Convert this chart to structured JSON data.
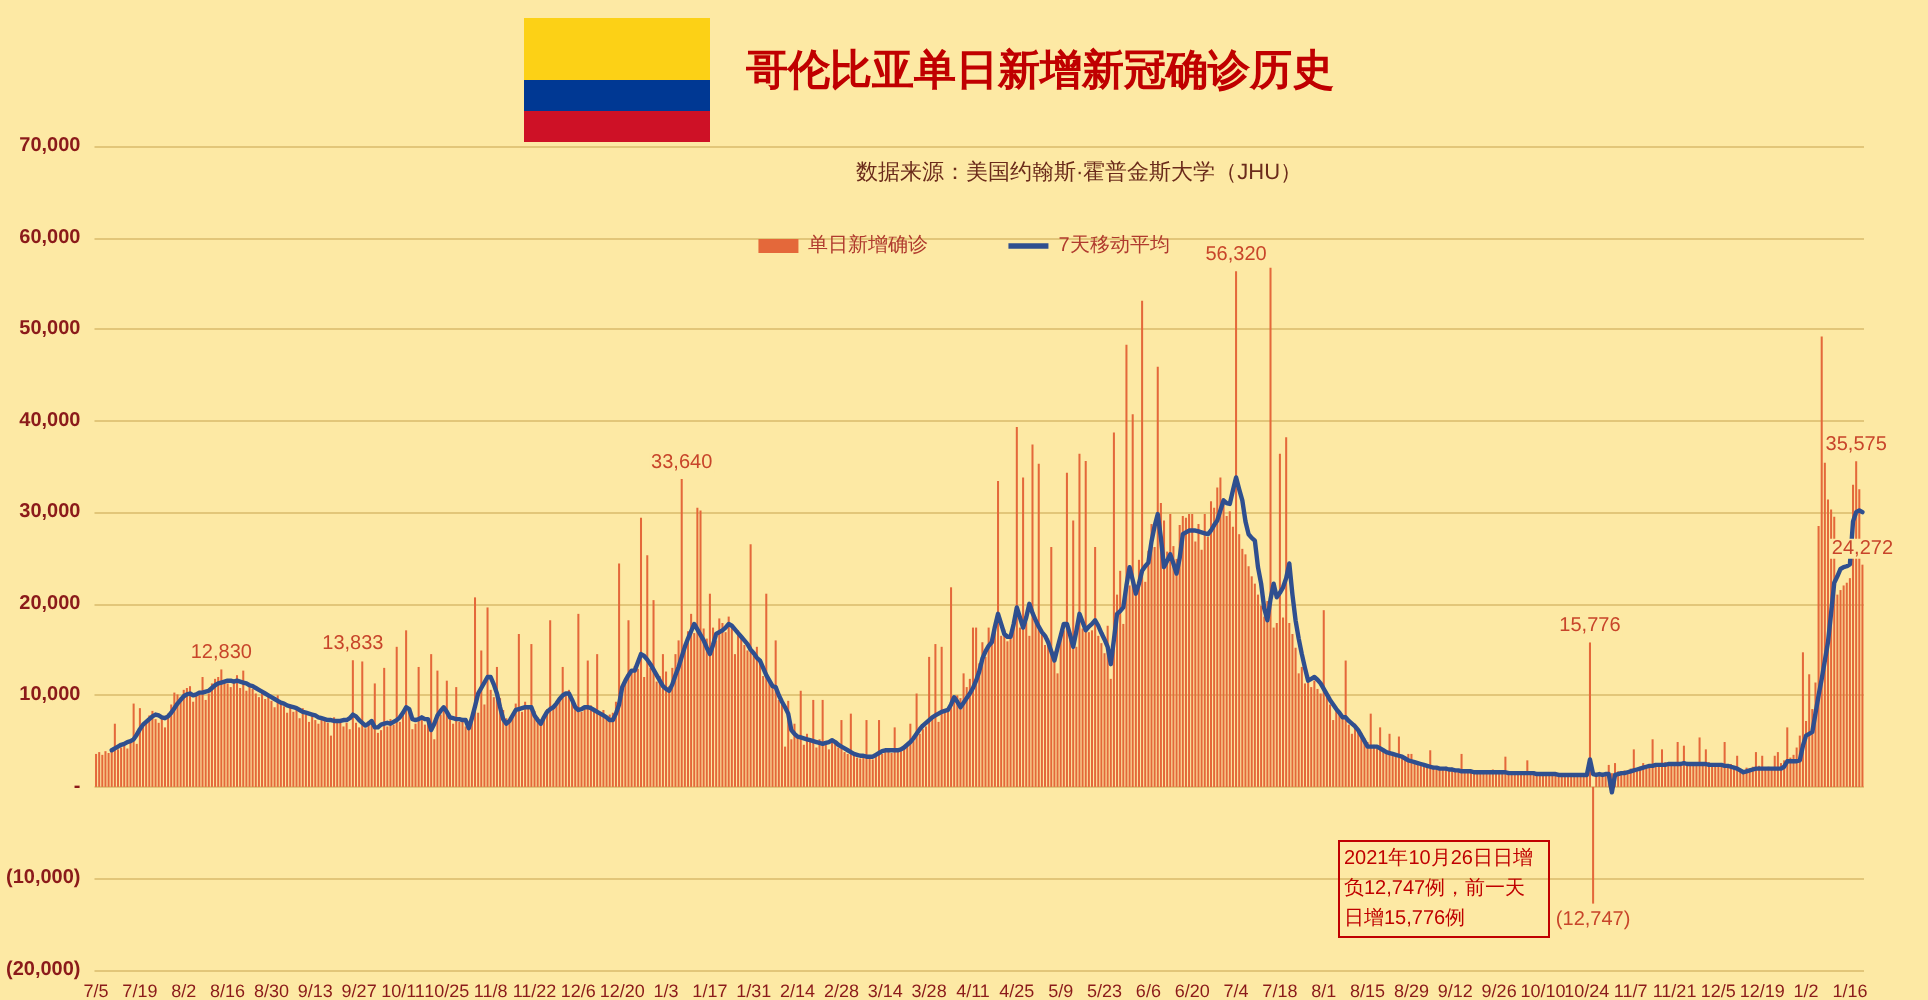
{
  "chart_data": {
    "type": "bar",
    "title": "哥伦比亚单日新增新冠确诊历史",
    "subtitle": "数据来源：美国约翰斯·霍普金斯大学（JHU）",
    "categories": [
      "7/5",
      null,
      null,
      null,
      null,
      null,
      null,
      null,
      null,
      null,
      null,
      null,
      null,
      null,
      "7/19",
      null,
      null,
      null,
      null,
      null,
      null,
      null,
      null,
      null,
      null,
      null,
      null,
      null,
      "8/2",
      null,
      null,
      null,
      null,
      null,
      null,
      null,
      null,
      null,
      null,
      null,
      null,
      null,
      "8/16",
      null,
      null,
      null,
      null,
      null,
      null,
      null,
      null,
      null,
      null,
      null,
      null,
      null,
      "8/30",
      null,
      null,
      null,
      null,
      null,
      null,
      null,
      null,
      null,
      null,
      null,
      null,
      null,
      "9/13",
      null,
      null,
      null,
      null,
      null,
      null,
      null,
      null,
      null,
      null,
      null,
      null,
      null,
      "9/27",
      null,
      null,
      null,
      null,
      null,
      null,
      null,
      null,
      null,
      null,
      null,
      null,
      null,
      "10/11",
      null,
      null,
      null,
      null,
      null,
      null,
      null,
      null,
      null,
      null,
      null,
      null,
      null,
      "10/25",
      null,
      null,
      null,
      null,
      null,
      null,
      null,
      null,
      null,
      null,
      null,
      null,
      null,
      "11/8",
      null,
      null,
      null,
      null,
      null,
      null,
      null,
      null,
      null,
      null,
      null,
      null,
      null,
      "11/22",
      null,
      null,
      null,
      null,
      null,
      null,
      null,
      null,
      null,
      null,
      null,
      null,
      null,
      "12/6",
      null,
      null,
      null,
      null,
      null,
      null,
      null,
      null,
      null,
      null,
      null,
      null,
      null,
      "12/20",
      null,
      null,
      null,
      null,
      null,
      null,
      null,
      null,
      null,
      null,
      null,
      null,
      null,
      "1/3",
      null,
      null,
      null,
      null,
      null,
      null,
      null,
      null,
      null,
      null,
      null,
      null,
      null,
      "1/17",
      null,
      null,
      null,
      null,
      null,
      null,
      null,
      null,
      null,
      null,
      null,
      null,
      null,
      "1/31",
      null,
      null,
      null,
      null,
      null,
      null,
      null,
      null,
      null,
      null,
      null,
      null,
      null,
      "2/14",
      null,
      null,
      null,
      null,
      null,
      null,
      null,
      null,
      null,
      null,
      null,
      null,
      null,
      "2/28",
      null,
      null,
      null,
      null,
      null,
      null,
      null,
      null,
      null,
      null,
      null,
      null,
      null,
      "3/14",
      null,
      null,
      null,
      null,
      null,
      null,
      null,
      null,
      null,
      null,
      null,
      null,
      null,
      "3/28",
      null,
      null,
      null,
      null,
      null,
      null,
      null,
      null,
      null,
      null,
      null,
      null,
      null,
      "4/11",
      null,
      null,
      null,
      null,
      null,
      null,
      null,
      null,
      null,
      null,
      null,
      null,
      null,
      "4/25",
      null,
      null,
      null,
      null,
      null,
      null,
      null,
      null,
      null,
      null,
      null,
      null,
      null,
      "5/9",
      null,
      null,
      null,
      null,
      null,
      null,
      null,
      null,
      null,
      null,
      null,
      null,
      null,
      "5/23",
      null,
      null,
      null,
      null,
      null,
      null,
      null,
      null,
      null,
      null,
      null,
      null,
      null,
      "6/6",
      null,
      null,
      null,
      null,
      null,
      null,
      null,
      null,
      null,
      null,
      null,
      null,
      null,
      "6/20",
      null,
      null,
      null,
      null,
      null,
      null,
      null,
      null,
      null,
      null,
      null,
      null,
      null,
      "7/4",
      null,
      null,
      null,
      null,
      null,
      null,
      null,
      null,
      null,
      null,
      null,
      null,
      null,
      "7/18",
      null,
      null,
      null,
      null,
      null,
      null,
      null,
      null,
      null,
      null,
      null,
      null,
      null,
      "8/1",
      null,
      null,
      null,
      null,
      null,
      null,
      null,
      null,
      null,
      null,
      null,
      null,
      null,
      "8/15",
      null,
      null,
      null,
      null,
      null,
      null,
      null,
      null,
      null,
      null,
      null,
      null,
      null,
      "8/29",
      null,
      null,
      null,
      null,
      null,
      null,
      null,
      null,
      null,
      null,
      null,
      null,
      null,
      "9/12",
      null,
      null,
      null,
      null,
      null,
      null,
      null,
      null,
      null,
      null,
      null,
      null,
      null,
      "9/26",
      null,
      null,
      null,
      null,
      null,
      null,
      null,
      null,
      null,
      null,
      null,
      null,
      null,
      "10/10",
      null,
      null,
      null,
      null,
      null,
      null,
      null,
      null,
      null,
      null,
      null,
      null,
      null,
      "10/24",
      null,
      null,
      null,
      null,
      null,
      null,
      null,
      null,
      null,
      null,
      null,
      null,
      null,
      "11/7",
      null,
      null,
      null,
      null,
      null,
      null,
      null,
      null,
      null,
      null,
      null,
      null,
      null,
      "11/21",
      null,
      null,
      null,
      null,
      null,
      null,
      null,
      null,
      null,
      null,
      null,
      null,
      null,
      "12/5",
      null,
      null,
      null,
      null,
      null,
      null,
      null,
      null,
      null,
      null,
      null,
      null,
      null,
      "12/19",
      null,
      null,
      null,
      null,
      null,
      null,
      null,
      null,
      null,
      null,
      null,
      null,
      null,
      "1/2",
      null,
      null,
      null,
      null,
      null,
      null,
      null,
      null,
      null,
      null,
      null,
      null,
      null,
      "1/16",
      null,
      null,
      null,
      null
    ],
    "series": [
      {
        "name": "单日新增确诊",
        "color": "#e4683a",
        "values": [
          3600,
          3800,
          3500,
          3900,
          3700,
          4000,
          6900,
          4100,
          4300,
          4500,
          4200,
          4900,
          9100,
          4700,
          8600,
          6900,
          7100,
          7800,
          8300,
          7400,
          7000,
          7600,
          6500,
          8000,
          9000,
          10300,
          10100,
          9800,
          10600,
          10800,
          11000,
          9300,
          10100,
          10500,
          12000,
          9500,
          10200,
          11300,
          11800,
          12000,
          12830,
          11400,
          11300,
          10900,
          11600,
          12200,
          10800,
          12700,
          10500,
          11000,
          10700,
          10200,
          9800,
          10500,
          9600,
          9900,
          9400,
          8700,
          10000,
          9300,
          8800,
          8100,
          9000,
          8200,
          8500,
          7500,
          8600,
          7900,
          7100,
          7800,
          7300,
          6900,
          7600,
          7500,
          7000,
          5600,
          7600,
          7100,
          7400,
          6600,
          7000,
          6300,
          13833,
          7000,
          6500,
          13700,
          6400,
          7200,
          7000,
          11300,
          5900,
          6200,
          13000,
          6600,
          7400,
          6800,
          15300,
          7100,
          7900,
          17100,
          8200,
          6300,
          6900,
          13100,
          7500,
          6800,
          7300,
          14500,
          5200,
          12700,
          7900,
          8300,
          11600,
          7400,
          6900,
          10900,
          7100,
          7500,
          6600,
          6800,
          7400,
          20700,
          8100,
          14900,
          9000,
          19600,
          10600,
          9800,
          13100,
          9700,
          8400,
          7500,
          7200,
          8000,
          9100,
          16700,
          8200,
          9300,
          8800,
          15600,
          8300,
          7600,
          6900,
          7800,
          8500,
          18200,
          8700,
          9000,
          9600,
          13100,
          10200,
          10600,
          9400,
          8800,
          18900,
          8200,
          8700,
          13800,
          8900,
          8500,
          14500,
          7900,
          8400,
          7600,
          7900,
          8100,
          9300,
          24400,
          10800,
          11500,
          18200,
          12500,
          13200,
          12900,
          29400,
          12000,
          25300,
          13000,
          20400,
          11500,
          12100,
          14500,
          12600,
          11000,
          13000,
          14500,
          16000,
          33640,
          15000,
          17000,
          18900,
          16800,
          30500,
          30200,
          17300,
          16200,
          21100,
          17400,
          16000,
          18400,
          17900,
          16900,
          18600,
          17600,
          14500,
          17100,
          16300,
          15500,
          14900,
          26500,
          14300,
          15300,
          13900,
          12100,
          21100,
          11700,
          10800,
          16000,
          9500,
          9000,
          4400,
          9400,
          5200,
          6900,
          5600,
          10500,
          4600,
          5800,
          4900,
          9500,
          4300,
          5200,
          9500,
          4700,
          4100,
          5100,
          4800,
          4300,
          7300,
          3800,
          3600,
          8000,
          3400,
          3200,
          3100,
          3300,
          7300,
          3100,
          3000,
          3500,
          7300,
          3600,
          3800,
          4100,
          3700,
          6500,
          4000,
          3900,
          4200,
          4500,
          6900,
          5000,
          10200,
          5800,
          6300,
          6600,
          14200,
          7400,
          15600,
          7100,
          15300,
          8200,
          8600,
          21800,
          9500,
          10000,
          9700,
          12400,
          10900,
          11800,
          17400,
          17400,
          13500,
          15800,
          14200,
          17400,
          16300,
          17000,
          33400,
          16500,
          17200,
          15900,
          16800,
          17600,
          39300,
          17400,
          33800,
          18000,
          16500,
          37400,
          17900,
          35300,
          16900,
          15500,
          16200,
          26200,
          14800,
          12400,
          16400,
          17100,
          34300,
          16100,
          29100,
          15300,
          36400,
          17300,
          35600,
          16900,
          17100,
          26200,
          16500,
          15700,
          14600,
          17600,
          11800,
          38700,
          21000,
          23600,
          17800,
          48300,
          22000,
          40700,
          21500,
          24800,
          53100,
          22400,
          25800,
          28700,
          26200,
          45900,
          31000,
          29100,
          25700,
          29800,
          26300,
          24900,
          28600,
          29600,
          29400,
          29800,
          29800,
          26800,
          28700,
          25900,
          29800,
          27300,
          31200,
          30500,
          32700,
          33800,
          31500,
          29600,
          30100,
          28400,
          56320,
          27600,
          26000,
          25400,
          24100,
          23000,
          22200,
          21000,
          19800,
          18600,
          20300,
          56700,
          17400,
          17900,
          36400,
          18500,
          38200,
          17900,
          16700,
          15200,
          12400,
          13100,
          11300,
          12200,
          10900,
          11600,
          10700,
          10200,
          19300,
          9800,
          9000,
          7300,
          8500,
          8100,
          7700,
          13800,
          6800,
          5800,
          6900,
          6400,
          5900,
          5300,
          4900,
          8000,
          4600,
          4200,
          6500,
          4100,
          3900,
          5800,
          3500,
          3400,
          5500,
          3200,
          3100,
          3600,
          3600,
          2700,
          2800,
          2600,
          2500,
          2400,
          4000,
          2300,
          2200,
          2100,
          2000,
          2200,
          1900,
          2100,
          1800,
          1900,
          3600,
          1700,
          1600,
          1800,
          1700,
          1500,
          1800,
          1600,
          1700,
          1400,
          1900,
          1600,
          1500,
          1700,
          3300,
          1500,
          1400,
          1600,
          1500,
          1400,
          1700,
          2900,
          1500,
          1300,
          1600,
          1400,
          1300,
          1500,
          1400,
          1200,
          1600,
          1300,
          1100,
          1300,
          1400,
          1200,
          1100,
          1500,
          1300,
          1200,
          1300,
          15776,
          -12747,
          1400,
          1500,
          1200,
          1600,
          2400,
          1500,
          2600,
          1700,
          1600,
          1800,
          1500,
          2000,
          4100,
          1900,
          2200,
          2600,
          2300,
          2400,
          5200,
          2500,
          2300,
          4100,
          2700,
          2400,
          2600,
          2400,
          4900,
          2300,
          4500,
          2500,
          2700,
          2400,
          2600,
          5400,
          2400,
          4100,
          2700,
          2300,
          2500,
          2400,
          2600,
          4900,
          2300,
          2500,
          2200,
          3400,
          1900,
          1700,
          2100,
          2000,
          2200,
          3800,
          2300,
          3400,
          2000,
          2200,
          2100,
          3400,
          3800,
          2600,
          2900,
          6500,
          3200,
          3500,
          4300,
          5600,
          14700,
          7200,
          12300,
          8500,
          11400,
          28500,
          49200,
          35400,
          31400,
          30300,
          29500,
          21000,
          21500,
          22000,
          22300,
          22800,
          33000,
          35575,
          32500,
          24272
        ],
        "value_labels": [
          null,
          null,
          null,
          null,
          null,
          null,
          null,
          null,
          null,
          null,
          null,
          null,
          null,
          null,
          null,
          null,
          null,
          null,
          null,
          null,
          null,
          null,
          null,
          null,
          null,
          null,
          null,
          null,
          null,
          null,
          null,
          null,
          null,
          null,
          null,
          null,
          null,
          null,
          null,
          null,
          "12,830",
          null,
          null,
          null,
          null,
          null,
          null,
          null,
          null,
          null,
          null,
          null,
          null,
          null,
          null,
          null,
          null,
          null,
          null,
          null,
          null,
          null,
          null,
          null,
          null,
          null,
          null,
          null,
          null,
          null,
          null,
          null,
          null,
          null,
          null,
          null,
          null,
          null,
          null,
          null,
          null,
          null,
          "13,833",
          null,
          null,
          null,
          null,
          null,
          null,
          null,
          null,
          null,
          null,
          null,
          null,
          null,
          null,
          null,
          null,
          null,
          null,
          null,
          null,
          null,
          null,
          null,
          null,
          null,
          null,
          null,
          null,
          null,
          null,
          null,
          null,
          null,
          null,
          null,
          null,
          null,
          null,
          null,
          null,
          null,
          null,
          null,
          null,
          null,
          null,
          null,
          null,
          null,
          null,
          null,
          null,
          null,
          null,
          null,
          null,
          null,
          null,
          null,
          null,
          null,
          null,
          null,
          null,
          null,
          null,
          null,
          null,
          null,
          null,
          null,
          null,
          null,
          null,
          null,
          null,
          null,
          null,
          null,
          null,
          null,
          null,
          null,
          null,
          null,
          null,
          null,
          null,
          null,
          null,
          null,
          null,
          null,
          null,
          null,
          null,
          null,
          null,
          null,
          null,
          null,
          null,
          null,
          null,
          "33,640",
          null,
          null,
          null,
          null,
          null,
          null,
          null,
          null,
          null,
          null,
          null,
          null,
          null,
          null,
          null,
          null,
          null,
          null,
          null,
          null,
          null,
          null,
          null,
          null,
          null,
          null,
          null,
          null,
          null,
          null,
          null,
          null,
          null,
          null,
          null,
          null,
          null,
          null,
          null,
          null,
          null,
          null,
          null,
          null,
          null,
          null,
          null,
          null,
          null,
          null,
          null,
          null,
          null,
          null,
          null,
          null,
          null,
          null,
          null,
          null,
          null,
          null,
          null,
          null,
          null,
          null,
          null,
          null,
          null,
          null,
          null,
          null,
          null,
          null,
          null,
          null,
          null,
          null,
          null,
          null,
          null,
          null,
          null,
          null,
          null,
          null,
          null,
          null,
          null,
          null,
          null,
          null,
          null,
          null,
          null,
          null,
          null,
          null,
          null,
          null,
          null,
          null,
          null,
          null,
          null,
          null,
          null,
          null,
          null,
          null,
          null,
          null,
          null,
          null,
          null,
          null,
          null,
          null,
          null,
          null,
          null,
          null,
          null,
          null,
          null,
          null,
          null,
          null,
          null,
          null,
          null,
          null,
          null,
          null,
          null,
          null,
          null,
          null,
          null,
          null,
          null,
          null,
          null,
          null,
          null,
          null,
          null,
          null,
          null,
          null,
          null,
          null,
          null,
          null,
          null,
          null,
          null,
          null,
          null,
          null,
          null,
          null,
          null,
          null,
          null,
          null,
          null,
          null,
          null,
          null,
          null,
          null,
          null,
          null,
          null,
          null,
          "56,320",
          null,
          null,
          null,
          null,
          null,
          null,
          null,
          null,
          null,
          null,
          null,
          null,
          null,
          null,
          null,
          null,
          null,
          null,
          null,
          null,
          null,
          null,
          null,
          null,
          null,
          null,
          null,
          null,
          null,
          null,
          null,
          null,
          null,
          null,
          null,
          null,
          null,
          null,
          null,
          null,
          null,
          null,
          null,
          null,
          null,
          null,
          null,
          null,
          null,
          null,
          null,
          null,
          null,
          null,
          null,
          null,
          null,
          null,
          null,
          null,
          null,
          null,
          null,
          null,
          null,
          null,
          null,
          null,
          null,
          null,
          null,
          null,
          null,
          null,
          null,
          null,
          null,
          null,
          null,
          null,
          null,
          null,
          null,
          null,
          null,
          null,
          null,
          null,
          null,
          null,
          null,
          null,
          null,
          null,
          null,
          null,
          null,
          null,
          null,
          null,
          null,
          null,
          null,
          null,
          null,
          null,
          null,
          null,
          null,
          null,
          null,
          null,
          "15,776",
          "(12,747)",
          null,
          null,
          null,
          null,
          null,
          null,
          null,
          null,
          null,
          null,
          null,
          null,
          null,
          null,
          null,
          null,
          null,
          null,
          null,
          null,
          null,
          null,
          null,
          null,
          null,
          null,
          null,
          null,
          null,
          null,
          null,
          null,
          null,
          null,
          null,
          null,
          null,
          null,
          null,
          null,
          null,
          null,
          null,
          null,
          null,
          null,
          null,
          null,
          null,
          null,
          null,
          null,
          null,
          null,
          null,
          null,
          null,
          null,
          null,
          null,
          null,
          null,
          null,
          null,
          null,
          null,
          null,
          null,
          null,
          null,
          null,
          null,
          null,
          null,
          null,
          null,
          null,
          null,
          null,
          null,
          null,
          null,
          null,
          "35,575",
          null,
          "24,272"
        ]
      },
      {
        "name": "7天移动平均",
        "type": "line",
        "color": "#2f4f8f",
        "values": [
          null,
          null,
          null,
          null,
          null,
          4000,
          4200,
          4400,
          4600,
          4700,
          4900,
          5000,
          5200,
          5700,
          6300,
          6800,
          7100,
          7400,
          7700,
          7900,
          7800,
          7600,
          7500,
          7700,
          8100,
          8600,
          9100,
          9500,
          9900,
          10100,
          10200,
          10000,
          10100,
          10300,
          10300,
          10400,
          10500,
          10800,
          11100,
          11300,
          11400,
          11500,
          11600,
          11600,
          11500,
          11600,
          11500,
          11400,
          11300,
          11100,
          11000,
          10800,
          10600,
          10400,
          10200,
          10000,
          9800,
          9600,
          9400,
          9200,
          9100,
          8900,
          8800,
          8700,
          8600,
          8400,
          8200,
          8100,
          8000,
          7900,
          7800,
          7600,
          7500,
          7400,
          7300,
          7300,
          7200,
          7200,
          7200,
          7300,
          7300,
          7500,
          7900,
          7700,
          7300,
          7000,
          6700,
          6900,
          7200,
          6500,
          6500,
          6800,
          6900,
          7000,
          6900,
          7100,
          7300,
          7600,
          8100,
          8700,
          8500,
          7400,
          7300,
          7400,
          7600,
          7400,
          7400,
          6200,
          6900,
          7800,
          8300,
          8700,
          8200,
          7600,
          7500,
          7400,
          7400,
          7300,
          7300,
          6400,
          7500,
          8800,
          10200,
          10800,
          11400,
          12000,
          12000,
          11200,
          10200,
          8700,
          7400,
          6900,
          7200,
          7800,
          8400,
          8500,
          8600,
          8700,
          8700,
          8700,
          7800,
          7300,
          6900,
          7600,
          8200,
          8500,
          8700,
          9100,
          9600,
          10000,
          10200,
          10200,
          9500,
          8700,
          8400,
          8500,
          8700,
          8700,
          8600,
          8400,
          8200,
          8000,
          7800,
          7600,
          7300,
          7300,
          8000,
          9000,
          10900,
          11600,
          12200,
          12700,
          12700,
          13600,
          14500,
          14300,
          13900,
          13400,
          12800,
          12200,
          11600,
          11000,
          10700,
          10500,
          11200,
          12200,
          13100,
          14200,
          15300,
          16200,
          17000,
          17800,
          17200,
          16600,
          16000,
          15200,
          14500,
          15500,
          16700,
          16900,
          17100,
          17400,
          17800,
          17600,
          17200,
          16800,
          16400,
          16000,
          15600,
          15000,
          14600,
          14100,
          13800,
          13000,
          12200,
          11600,
          11000,
          10900,
          10000,
          9300,
          8700,
          8000,
          6200,
          5800,
          5500,
          5400,
          5300,
          5200,
          5100,
          5000,
          4900,
          4800,
          4700,
          4800,
          4900,
          5100,
          4900,
          4600,
          4400,
          4200,
          4000,
          3800,
          3600,
          3500,
          3400,
          3400,
          3300,
          3300,
          3300,
          3500,
          3700,
          3900,
          4000,
          4000,
          4000,
          4000,
          4000,
          4100,
          4300,
          4600,
          4900,
          5300,
          5800,
          6300,
          6700,
          7000,
          7300,
          7600,
          7800,
          8000,
          8200,
          8300,
          8400,
          9000,
          9800,
          9300,
          8700,
          9200,
          9700,
          10200,
          10800,
          11600,
          12600,
          14000,
          14800,
          15400,
          15800,
          17500,
          18900,
          17800,
          16700,
          16400,
          16400,
          17800,
          19600,
          18500,
          17400,
          18500,
          20000,
          19000,
          18200,
          17500,
          16900,
          16500,
          15800,
          14800,
          13800,
          15200,
          16500,
          17800,
          17800,
          16600,
          15300,
          17000,
          18900,
          18000,
          17100,
          17500,
          17800,
          18200,
          17600,
          16800,
          16100,
          15300,
          13400,
          16100,
          18900,
          19200,
          19600,
          22000,
          24000,
          22600,
          21100,
          22200,
          23600,
          24100,
          24500,
          26800,
          28500,
          29800,
          27200,
          24000,
          24700,
          25400,
          24400,
          23300,
          25000,
          27600,
          27800,
          28000,
          28000,
          28000,
          27900,
          27800,
          27700,
          27600,
          28000,
          28600,
          29100,
          30200,
          31300,
          31000,
          30900,
          32400,
          33800,
          32500,
          31300,
          29000,
          27600,
          27200,
          26900,
          24000,
          22200,
          19500,
          18200,
          20500,
          22200,
          20700,
          21200,
          21800,
          22800,
          24400,
          21000,
          18200,
          16200,
          14500,
          13000,
          11600,
          11800,
          12000,
          11700,
          11300,
          10700,
          10100,
          9500,
          9000,
          8500,
          8100,
          7600,
          7600,
          7200,
          6900,
          6600,
          6200,
          5600,
          5000,
          4400,
          4400,
          4400,
          4400,
          4200,
          4000,
          3800,
          3700,
          3600,
          3500,
          3400,
          3300,
          3100,
          2900,
          2800,
          2700,
          2600,
          2500,
          2400,
          2300,
          2200,
          2100,
          2100,
          2000,
          2000,
          2000,
          1900,
          1900,
          1800,
          1800,
          1700,
          1700,
          1700,
          1700,
          1600,
          1600,
          1600,
          1600,
          1600,
          1600,
          1600,
          1600,
          1600,
          1600,
          1600,
          1500,
          1500,
          1500,
          1500,
          1500,
          1500,
          1500,
          1500,
          1500,
          1400,
          1400,
          1400,
          1400,
          1400,
          1400,
          1400,
          1300,
          1300,
          1300,
          1300,
          1300,
          1300,
          1300,
          1300,
          1300,
          1300,
          3000,
          1400,
          1300,
          1400,
          1300,
          1400,
          1400,
          -600,
          1300,
          1400,
          1500,
          1500,
          1600,
          1700,
          1800,
          1900,
          2000,
          2100,
          2200,
          2300,
          2300,
          2400,
          2400,
          2400,
          2400,
          2500,
          2500,
          2500,
          2500,
          2500,
          2600,
          2500,
          2500,
          2500,
          2500,
          2500,
          2500,
          2500,
          2400,
          2400,
          2400,
          2400,
          2400,
          2300,
          2300,
          2200,
          2100,
          2000,
          1800,
          1600,
          1700,
          1800,
          1900,
          2000,
          2000,
          2000,
          2000,
          2000,
          2000,
          2000,
          2000,
          2000,
          2200,
          2800,
          2800,
          2800,
          2800,
          2900,
          4500,
          5600,
          5800,
          6000,
          8000,
          10000,
          11800,
          13800,
          15800,
          19000,
          22300,
          23000,
          23800,
          24000,
          24100,
          24300,
          29000,
          30000,
          30200,
          30000
        ]
      }
    ],
    "ylim": [
      -20000,
      70000
    ],
    "yticks": [
      {
        "value": -20000,
        "label": "(20,000)"
      },
      {
        "value": -10000,
        "label": "(10,000)"
      },
      {
        "value": 0,
        "label": "-"
      },
      {
        "value": 10000,
        "label": "10,000"
      },
      {
        "value": 20000,
        "label": "20,000"
      },
      {
        "value": 30000,
        "label": "30,000"
      },
      {
        "value": 40000,
        "label": "40,000"
      },
      {
        "value": 50000,
        "label": "50,000"
      },
      {
        "value": 60000,
        "label": "60,000"
      },
      {
        "value": 70000,
        "label": "70,000"
      }
    ],
    "grid": "y",
    "legend": "top",
    "marker": "none",
    "line_style": "solid",
    "annotations": [
      "2021年10月26日日增负12,747例，前一天日增15,776例"
    ]
  }
}
